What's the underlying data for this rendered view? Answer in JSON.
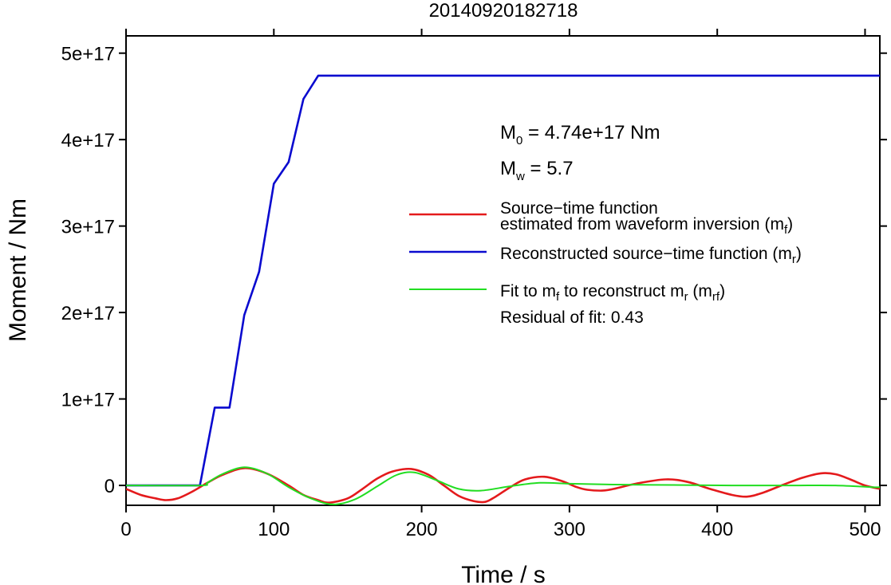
{
  "chart_data": {
    "type": "line",
    "title": "20140920182718",
    "xlabel": "Time / s",
    "ylabel": "Moment / Nm",
    "xlim": [
      0,
      510
    ],
    "ylim": [
      -2.3e+16,
      5.2e+17
    ],
    "x_ticks": [
      0,
      100,
      200,
      300,
      400,
      500
    ],
    "x_tick_labels": [
      "0",
      "100",
      "200",
      "300",
      "400",
      "500"
    ],
    "y_ticks": [
      0,
      1e+17,
      2e+17,
      3e+17,
      4e+17,
      5e+17
    ],
    "y_tick_labels": [
      "0",
      "1e+17",
      "2e+17",
      "3e+17",
      "4e+17",
      "5e+17"
    ],
    "grid": false,
    "legend_position": "right",
    "annotations": {
      "m0": {
        "main": "M",
        "sub": "0",
        "rest": " = 4.74e+17 Nm"
      },
      "mw": {
        "main": "M",
        "sub": "w",
        "rest": " = 5.7"
      },
      "residual": "Residual of fit: 0.43"
    },
    "legend": {
      "mf": {
        "line1": "Source−time function",
        "line2_pre": "estimated from waveform inversion (m",
        "line2_sub": "f",
        "line2_post": ")"
      },
      "mr": {
        "pre": "Reconstructed source−time function (m",
        "sub": "r",
        "post": ")"
      },
      "mrf": {
        "pre": "Fit to m",
        "sub1": "f",
        "mid": " to reconstruct m",
        "sub2": "r",
        "mid2": " (m",
        "sub3": "rf",
        "post": ")"
      }
    },
    "series": [
      {
        "key": "mf",
        "color": "#e41a1c",
        "x": [
          0,
          10,
          20,
          27,
          35,
          45,
          55,
          65,
          80,
          95,
          110,
          120,
          130,
          137,
          150,
          160,
          170,
          180,
          193,
          205,
          215,
          225,
          235,
          243,
          250,
          260,
          270,
          283,
          295,
          305,
          312,
          322,
          330,
          345,
          365,
          380,
          395,
          410,
          420,
          430,
          445,
          458,
          470,
          480,
          490,
          500,
          510
        ],
        "y": [
          -4000000000000000.0,
          -1.1e+16,
          -1.5e+16,
          -1.7e+16,
          -1.5e+16,
          -7000000000000000.0,
          3000000000000000.0,
          1.2e+16,
          2e+16,
          1.4e+16,
          0,
          -1.1e+16,
          -1.7e+16,
          -2e+16,
          -1.5e+16,
          -4000000000000000.0,
          8000000000000000.0,
          1.6e+16,
          1.9e+16,
          1.2e+16,
          0,
          -1.2e+16,
          -1.8e+16,
          -1.9e+16,
          -1.3e+16,
          -2000000000000000.0,
          7000000000000000.0,
          1e+16,
          5000000000000000.0,
          -2000000000000000.0,
          -5000000000000000.0,
          -6000000000000000.0,
          -4000000000000000.0,
          2000000000000000.0,
          7000000000000000.0,
          4000000000000000.0,
          -4000000000000000.0,
          -1.1e+16,
          -1.3e+16,
          -9000000000000000.0,
          1000000000000000.0,
          9000000000000000.0,
          1.4e+16,
          1.3e+16,
          7000000000000000.0,
          0,
          -4000000000000000.0
        ]
      },
      {
        "key": "mr",
        "color": "#0a0acf",
        "x": [
          0,
          50,
          60,
          70,
          80,
          90,
          100,
          110,
          120,
          130,
          510
        ],
        "y": [
          0,
          0,
          9e+16,
          9e+16,
          1.97e+17,
          2.47e+17,
          3.49e+17,
          3.74e+17,
          4.47e+17,
          4.74e+17,
          4.74e+17
        ]
      },
      {
        "key": "mrf",
        "color": "#22dd22",
        "x": [
          0,
          50,
          55,
          65,
          80,
          95,
          110,
          125,
          140,
          155,
          170,
          183,
          195,
          210,
          225,
          240,
          260,
          280,
          300,
          330,
          370,
          410,
          450,
          480,
          505,
          510
        ],
        "y": [
          0,
          0,
          3000000000000000.0,
          1.3e+16,
          2.1e+16,
          1.4e+16,
          -2000000000000000.0,
          -1.5e+16,
          -2.2e+16,
          -1.6e+16,
          -1000000000000000.0,
          1.2e+16,
          1.5e+16,
          6000000000000000.0,
          -4000000000000000.0,
          -6000000000000000.0,
          -1000000000000000.0,
          3000000000000000.0,
          2000000000000000.0,
          1000000000000000.0,
          500000000000000.0,
          0,
          0,
          0,
          -2000000000000000.0,
          -2000000000000000.0
        ]
      }
    ]
  }
}
